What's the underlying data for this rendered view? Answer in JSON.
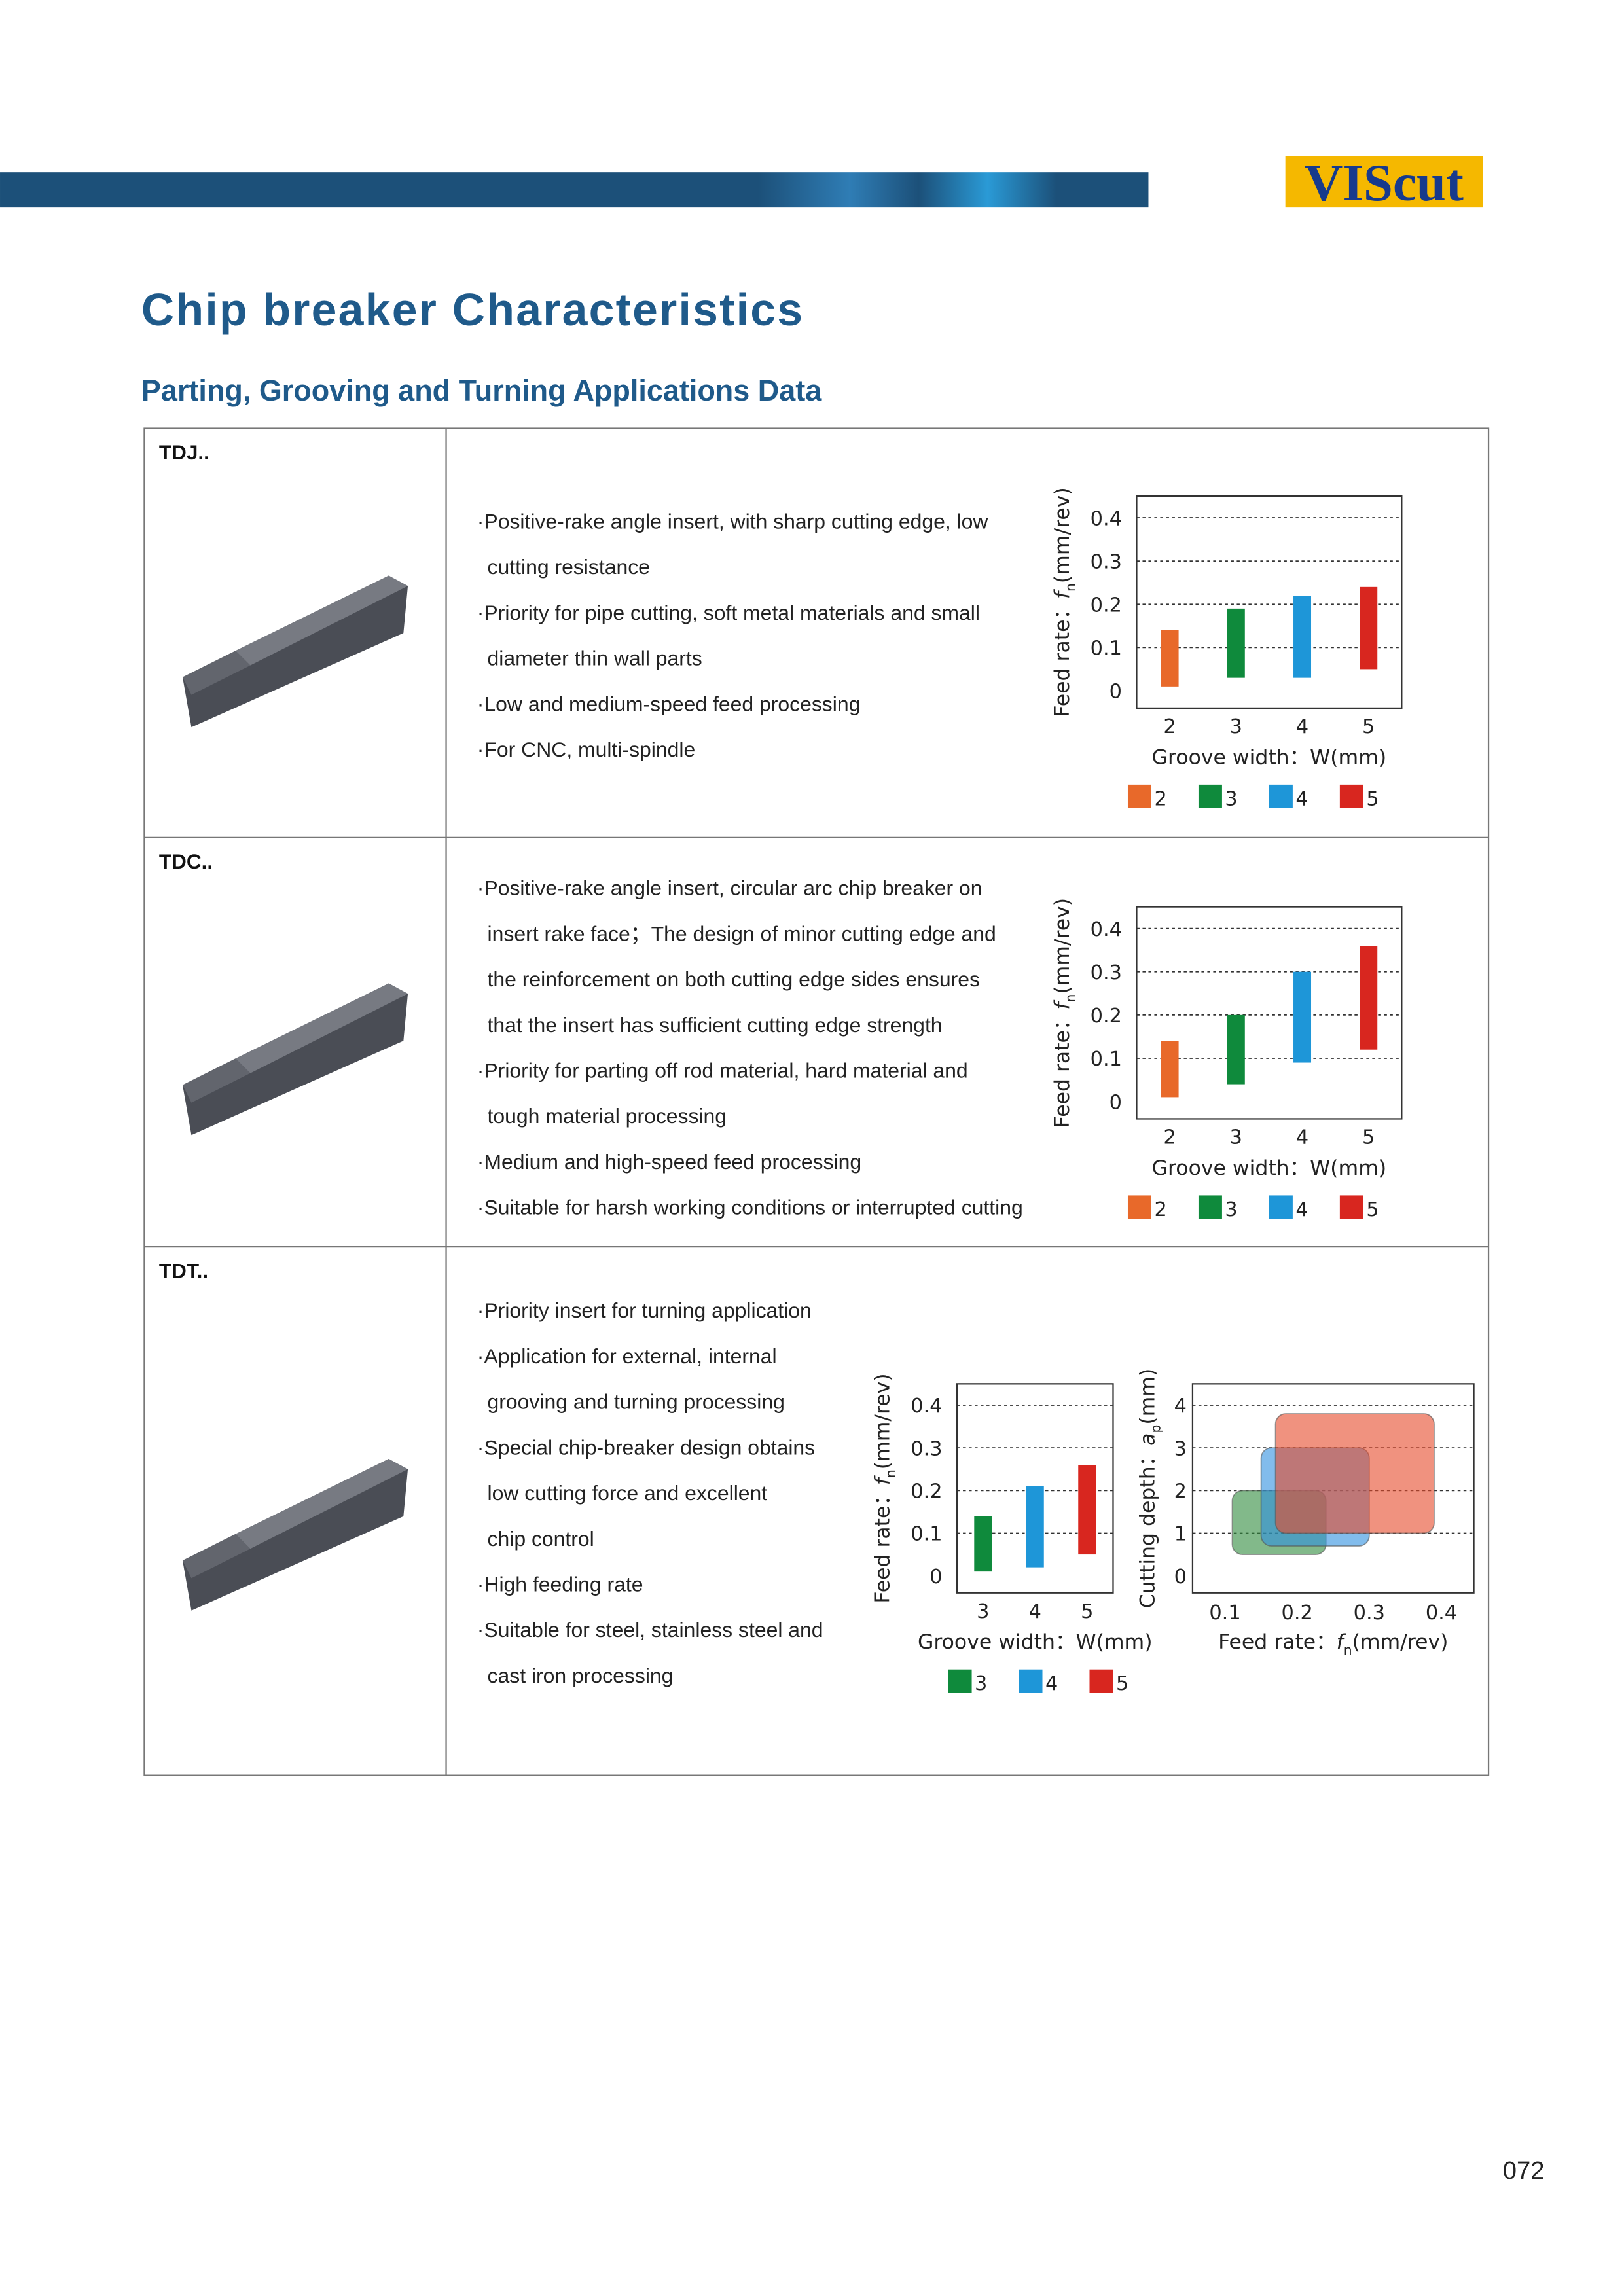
{
  "header": {
    "logo": "VIScut",
    "title": "Chip breaker Characteristics",
    "subtitle": "Parting, Grooving and Turning Applications Data"
  },
  "rows": [
    {
      "code": "TDJ..",
      "lines": [
        "·Positive-rake angle insert, with sharp cutting edge, low",
        "cutting resistance",
        "·Priority for pipe cutting, soft metal materials and small",
        "diameter thin wall parts",
        "·Low and medium-speed feed processing",
        "·For CNC, multi-spindle"
      ],
      "charts": [
        {
          "type": "range-bar",
          "ylabel": {
            "text": "Feed rate：",
            "symbol": "f",
            "sub": "n",
            "unit": "(mm/rev)"
          },
          "xlabel": "Groove width：W(mm)",
          "categories": [
            "2",
            "3",
            "4",
            "5"
          ],
          "ylim": [
            -0.04,
            0.45
          ],
          "yticks": [
            0,
            0.1,
            0.2,
            0.3,
            0.4
          ],
          "grid": true,
          "series": [
            {
              "name": "2",
              "color": "#e8692a",
              "range": [
                0.01,
                0.14
              ]
            },
            {
              "name": "3",
              "color": "#0f8a3c",
              "range": [
                0.03,
                0.19
              ]
            },
            {
              "name": "4",
              "color": "#1e96d8",
              "range": [
                0.03,
                0.22
              ]
            },
            {
              "name": "5",
              "color": "#d8261f",
              "range": [
                0.05,
                0.24
              ]
            }
          ]
        }
      ]
    },
    {
      "code": "TDC..",
      "lines": [
        "·Positive-rake angle insert, circular arc chip breaker on",
        "insert rake face；The design of minor cutting edge and",
        "the reinforcement on both cutting edge sides ensures",
        "that the insert has sufficient cutting edge strength",
        "·Priority for parting off rod material, hard material and",
        "tough material processing",
        "·Medium and high-speed feed processing",
        "·Suitable for harsh working conditions or interrupted cutting"
      ],
      "charts": [
        {
          "type": "range-bar",
          "ylabel": {
            "text": "Feed rate：",
            "symbol": "f",
            "sub": "n",
            "unit": "(mm/rev)"
          },
          "xlabel": "Groove width：W(mm)",
          "categories": [
            "2",
            "3",
            "4",
            "5"
          ],
          "ylim": [
            -0.04,
            0.45
          ],
          "yticks": [
            0,
            0.1,
            0.2,
            0.3,
            0.4
          ],
          "grid": true,
          "series": [
            {
              "name": "2",
              "color": "#e8692a",
              "range": [
                0.01,
                0.14
              ]
            },
            {
              "name": "3",
              "color": "#0f8a3c",
              "range": [
                0.04,
                0.2
              ]
            },
            {
              "name": "4",
              "color": "#1e96d8",
              "range": [
                0.09,
                0.3
              ]
            },
            {
              "name": "5",
              "color": "#d8261f",
              "range": [
                0.12,
                0.36
              ]
            }
          ]
        }
      ]
    },
    {
      "code": "TDT..",
      "lines": [
        "·Priority insert for turning application",
        "·Application for external, internal",
        "grooving and turning processing",
        "·Special chip-breaker design obtains",
        "low cutting force and excellent",
        "chip control",
        "·High feeding rate",
        "·Suitable for steel, stainless steel and",
        "cast iron processing"
      ],
      "charts": [
        {
          "type": "range-bar",
          "ylabel": {
            "text": "Feed rate：",
            "symbol": "f",
            "sub": "n",
            "unit": "(mm/rev)"
          },
          "xlabel": "Groove width：W(mm)",
          "categories": [
            "3",
            "4",
            "5"
          ],
          "ylim": [
            -0.04,
            0.45
          ],
          "yticks": [
            0,
            0.1,
            0.2,
            0.3,
            0.4
          ],
          "grid": true,
          "series": [
            {
              "name": "3",
              "color": "#0f8a3c",
              "range": [
                0.01,
                0.14
              ]
            },
            {
              "name": "4",
              "color": "#1e96d8",
              "range": [
                0.02,
                0.21
              ]
            },
            {
              "name": "5",
              "color": "#d8261f",
              "range": [
                0.05,
                0.26
              ]
            }
          ]
        },
        {
          "type": "range-area",
          "ylabel": {
            "text": "Cutting depth：",
            "symbol": "a",
            "sub": "p",
            "unit": "(mm)"
          },
          "xlabel": {
            "text": "Feed rate：",
            "symbol": "f",
            "sub": "n",
            "unit": "(mm/rev)"
          },
          "xlim": [
            0.055,
            0.445
          ],
          "xticks": [
            0.1,
            0.2,
            0.3,
            0.4
          ],
          "ylim": [
            -0.4,
            4.5
          ],
          "yticks": [
            0,
            1,
            2,
            3,
            4
          ],
          "grid": true,
          "series": [
            {
              "color": "#2e8b3c",
              "x": [
                0.11,
                0.24
              ],
              "y": [
                0.5,
                2.0
              ]
            },
            {
              "color": "#2f8fe0",
              "x": [
                0.15,
                0.3
              ],
              "y": [
                0.7,
                3.0
              ]
            },
            {
              "color": "#e64a2a",
              "x": [
                0.17,
                0.39
              ],
              "y": [
                1.0,
                3.8
              ]
            }
          ]
        }
      ]
    }
  ],
  "page_number": "072"
}
